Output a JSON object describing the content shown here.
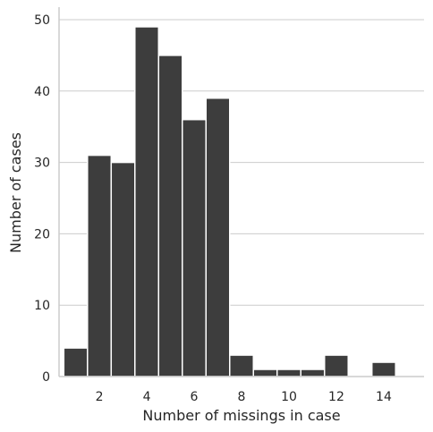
{
  "chart_data": {
    "type": "bar",
    "title": "",
    "xlabel": "Number of missings in case",
    "ylabel": "Number of cases",
    "xlim": [
      0.3,
      15.7
    ],
    "ylim": [
      0,
      51.5
    ],
    "x_ticks": [
      2,
      4,
      6,
      8,
      10,
      12,
      14
    ],
    "y_ticks": [
      0,
      10,
      20,
      30,
      40,
      50
    ],
    "grid": "horizontal",
    "bar_width": 1,
    "bins": [
      {
        "x": 1,
        "value": 4
      },
      {
        "x": 2,
        "value": 31
      },
      {
        "x": 3,
        "value": 30
      },
      {
        "x": 4,
        "value": 49
      },
      {
        "x": 5,
        "value": 45
      },
      {
        "x": 6,
        "value": 36
      },
      {
        "x": 7,
        "value": 39
      },
      {
        "x": 8,
        "value": 3
      },
      {
        "x": 9,
        "value": 1
      },
      {
        "x": 10,
        "value": 1
      },
      {
        "x": 11,
        "value": 1
      },
      {
        "x": 12,
        "value": 3
      },
      {
        "x": 14,
        "value": 2
      }
    ],
    "colors": {
      "bar_fill": "#3d3d3d",
      "bar_edge": "#ffffff",
      "grid": "#cccccc",
      "axis": "#cccccc",
      "text": "#262626"
    }
  }
}
